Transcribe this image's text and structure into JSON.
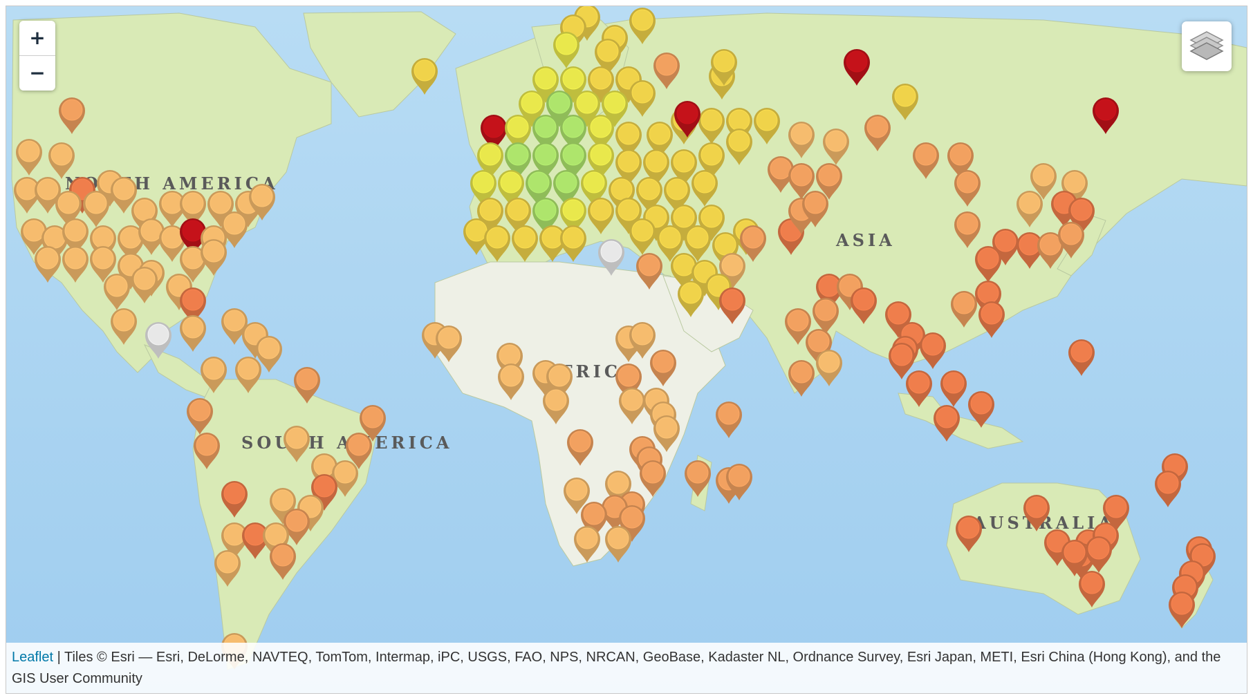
{
  "map": {
    "controls": {
      "zoom_in_label": "+",
      "zoom_out_label": "−"
    },
    "layers_control": {
      "icon": "layers-icon"
    },
    "region_labels": [
      "NORTH AMERICA",
      "SOUTH AMERICA",
      "AFRICA",
      "ASIA",
      "AUSTRALIA"
    ],
    "marker_colors": {
      "dark_red": "#c5121a",
      "red_orange": "#ef7e4c",
      "orange": "#f2a160",
      "light_orange": "#f6bc6e",
      "yellow_orange": "#f0d34a",
      "yellow": "#e9e84c",
      "light_green": "#aee56c",
      "grey": "#e8e8e8"
    },
    "colors": {
      "ocean": "#a9d3f2",
      "land": "#d7e9b3",
      "desert_land": "#f2f2ee"
    }
  },
  "attribution": {
    "link_label": "Leaflet",
    "separator": " | ",
    "text": "Tiles © Esri — Esri, DeLorme, NAVTEQ, TomTom, Intermap, iPC, USGS, FAO, NPS, NRCAN, GeoBase, Kadaster NL, Ordnance Survey, Esri Japan, METI, Esri China (Hong Kong), and the GIS User Community"
  }
}
